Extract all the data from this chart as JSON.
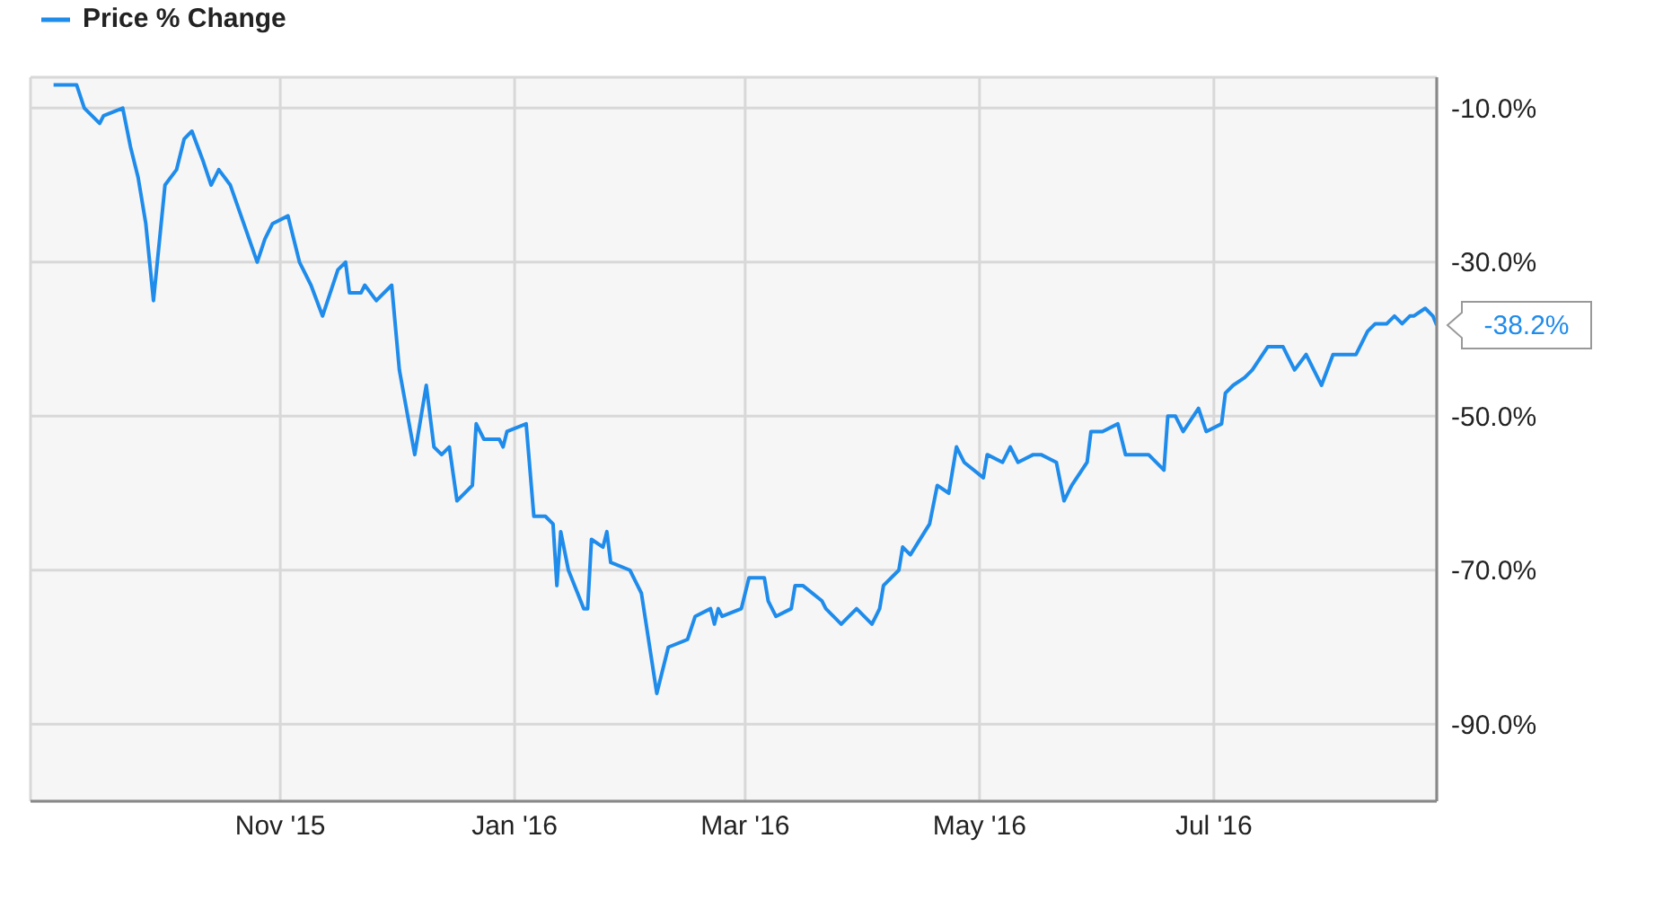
{
  "chart_data": {
    "type": "line",
    "legend": "top left",
    "grid": true,
    "marker": "none",
    "line_style": "solid",
    "xlim": [
      "2015-08-28",
      "2016-08-28"
    ],
    "xticks": [
      {
        "value": "2015-11-01",
        "label": "Nov '15"
      },
      {
        "value": "2016-01-01",
        "label": "Jan '16"
      },
      {
        "value": "2016-03-01",
        "label": "Mar '16"
      },
      {
        "value": "2016-05-01",
        "label": "May '16"
      },
      {
        "value": "2016-07-01",
        "label": "Jul '16"
      }
    ],
    "ylim": [
      -100,
      -6
    ],
    "yticks": [
      {
        "value": -10,
        "label": "-10.0%"
      },
      {
        "value": -30,
        "label": "-30.0%"
      },
      {
        "value": -50,
        "label": "-50.0%"
      },
      {
        "value": -70,
        "label": "-70.0%"
      },
      {
        "value": -90,
        "label": "-90.0%"
      }
    ],
    "x": [
      "2015-09-03",
      "2015-09-09",
      "2015-09-11",
      "2015-09-15",
      "2015-09-16",
      "2015-09-21",
      "2015-09-23",
      "2015-09-25",
      "2015-09-27",
      "2015-09-29",
      "2015-10-02",
      "2015-10-05",
      "2015-10-07",
      "2015-10-09",
      "2015-10-12",
      "2015-10-14",
      "2015-10-16",
      "2015-10-19",
      "2015-10-26",
      "2015-10-28",
      "2015-10-30",
      "2015-11-03",
      "2015-11-06",
      "2015-11-09",
      "2015-11-12",
      "2015-11-16",
      "2015-11-18",
      "2015-11-19",
      "2015-11-22",
      "2015-11-23",
      "2015-11-26",
      "2015-11-30",
      "2015-12-02",
      "2015-12-06",
      "2015-12-09",
      "2015-12-11",
      "2015-12-13",
      "2015-12-15",
      "2015-12-17",
      "2015-12-21",
      "2015-12-22",
      "2015-12-24",
      "2015-12-28",
      "2015-12-29",
      "2015-12-30",
      "2016-01-04",
      "2016-01-06",
      "2016-01-09",
      "2016-01-11",
      "2016-01-12",
      "2016-01-13",
      "2016-01-15",
      "2016-01-19",
      "2016-01-20",
      "2016-01-21",
      "2016-01-24",
      "2016-01-25",
      "2016-01-26",
      "2016-01-31",
      "2016-02-02",
      "2016-02-03",
      "2016-02-07",
      "2016-02-10",
      "2016-02-15",
      "2016-02-17",
      "2016-02-21",
      "2016-02-22",
      "2016-02-23",
      "2016-02-24",
      "2016-02-29",
      "2016-03-02",
      "2016-03-06",
      "2016-03-07",
      "2016-03-09",
      "2016-03-13",
      "2016-03-14",
      "2016-03-16",
      "2016-03-21",
      "2016-03-22",
      "2016-03-26",
      "2016-03-30",
      "2016-04-03",
      "2016-04-05",
      "2016-04-06",
      "2016-04-10",
      "2016-04-11",
      "2016-04-13",
      "2016-04-18",
      "2016-04-20",
      "2016-04-23",
      "2016-04-25",
      "2016-04-27",
      "2016-05-02",
      "2016-05-03",
      "2016-05-07",
      "2016-05-09",
      "2016-05-11",
      "2016-05-15",
      "2016-05-17",
      "2016-05-21",
      "2016-05-23",
      "2016-05-25",
      "2016-05-29",
      "2016-05-30",
      "2016-06-02",
      "2016-06-06",
      "2016-06-08",
      "2016-06-12",
      "2016-06-14",
      "2016-06-18",
      "2016-06-19",
      "2016-06-21",
      "2016-06-23",
      "2016-06-27",
      "2016-06-29",
      "2016-07-03",
      "2016-07-04",
      "2016-07-06",
      "2016-07-09",
      "2016-07-11",
      "2016-07-15",
      "2016-07-19",
      "2016-07-22",
      "2016-07-25",
      "2016-07-29",
      "2016-08-01",
      "2016-08-03",
      "2016-08-07",
      "2016-08-10",
      "2016-08-12",
      "2016-08-15",
      "2016-08-17",
      "2016-08-19",
      "2016-08-21",
      "2016-08-22",
      "2016-08-25",
      "2016-08-27",
      "2016-08-28"
    ],
    "series": [
      {
        "name": "Price % Change",
        "color": "#1f8ceb",
        "values": [
          -7,
          -7,
          -10,
          -12,
          -11,
          -10,
          -15,
          -19,
          -25,
          -35,
          -20,
          -18,
          -14,
          -13,
          -17,
          -20,
          -18,
          -20,
          -30,
          -27,
          -25,
          -24,
          -30,
          -33,
          -37,
          -31,
          -30,
          -34,
          -34,
          -33,
          -35,
          -33,
          -44,
          -55,
          -46,
          -54,
          -55,
          -54,
          -61,
          -59,
          -51,
          -53,
          -53,
          -54,
          -52,
          -51,
          -63,
          -63,
          -64,
          -72,
          -65,
          -70,
          -75,
          -75,
          -66,
          -67,
          -65,
          -69,
          -70,
          -72,
          -73,
          -86,
          -80,
          -79,
          -76,
          -75,
          -77,
          -75,
          -76,
          -75,
          -71,
          -71,
          -74,
          -76,
          -75,
          -72,
          -72,
          -74,
          -75,
          -77,
          -75,
          -77,
          -75,
          -72,
          -70,
          -67,
          -68,
          -64,
          -59,
          -60,
          -54,
          -56,
          -58,
          -55,
          -56,
          -54,
          -56,
          -55,
          -55,
          -56,
          -61,
          -59,
          -56,
          -52,
          -52,
          -51,
          -55,
          -55,
          -55,
          -57,
          -50,
          -50,
          -52,
          -49,
          -52,
          -51,
          -47,
          -46,
          -45,
          -44,
          -41,
          -41,
          -44,
          -42,
          -46,
          -42,
          -42,
          -42,
          -39,
          -38,
          -38,
          -37,
          -38,
          -37,
          -37,
          -36,
          -37,
          -38.2
        ],
        "value_labels": [
          null,
          null,
          null,
          null,
          null,
          null,
          null,
          null,
          null,
          null,
          null,
          null,
          null,
          null,
          null,
          null,
          null,
          null,
          null,
          null,
          null,
          null,
          null,
          null,
          null,
          null,
          null,
          null,
          null,
          null,
          null,
          null,
          null,
          null,
          null,
          null,
          null,
          null,
          null,
          null,
          null,
          null,
          null,
          null,
          null,
          null,
          null,
          null,
          null,
          null,
          null,
          null,
          null,
          null,
          null,
          null,
          null,
          null,
          null,
          null,
          null,
          null,
          null,
          null,
          null,
          null,
          null,
          null,
          null,
          null,
          null,
          null,
          null,
          null,
          null,
          null,
          null,
          null,
          null,
          null,
          null,
          null,
          null,
          null,
          null,
          null,
          null,
          null,
          null,
          null,
          null,
          null,
          null,
          null,
          null,
          null,
          null,
          null,
          null,
          null,
          null,
          null,
          null,
          null,
          null,
          null,
          null,
          null,
          null,
          null,
          null,
          null,
          null,
          null,
          null,
          null,
          null,
          null,
          null,
          null,
          null,
          null,
          null,
          null,
          null,
          null,
          null,
          null,
          null,
          null,
          null,
          null,
          null,
          null,
          null,
          null,
          null,
          "-38.2%"
        ]
      }
    ]
  }
}
